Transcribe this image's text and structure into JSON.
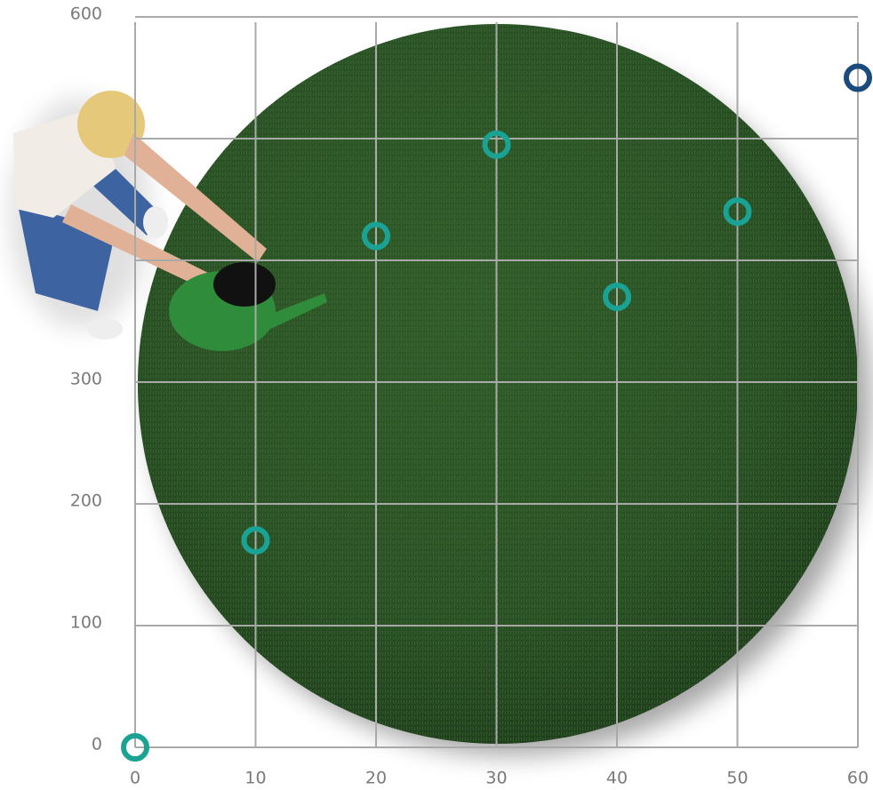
{
  "chart_data": {
    "type": "line",
    "x": [
      0,
      10,
      20,
      30,
      40,
      50,
      60
    ],
    "series": [
      {
        "values": [
          0,
          170,
          420,
          495,
          370,
          440,
          550
        ],
        "color": "#1aa394",
        "last_point_color": "#1b4b7c"
      }
    ],
    "xlim": [
      0,
      60
    ],
    "xticks": [
      0,
      10,
      20,
      30,
      40,
      50,
      60
    ],
    "ylim": [
      0,
      600
    ],
    "yticks": [
      0,
      100,
      200,
      300,
      600
    ],
    "ygrid": [
      0,
      100,
      200,
      300,
      400,
      500,
      600
    ],
    "grid": true
  }
}
